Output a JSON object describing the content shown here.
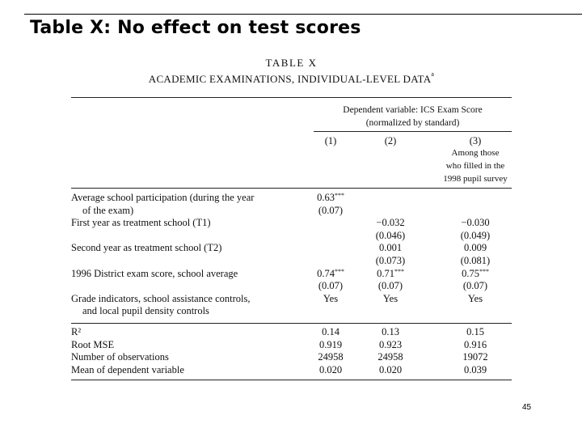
{
  "slide": {
    "title": "Table X: No effect on test scores",
    "page_number": "45"
  },
  "table": {
    "caption_line1": "TABLE X",
    "caption_line2": "ACADEMIC EXAMINATIONS, INDIVIDUAL-LEVEL DATA",
    "caption_mark": "a",
    "dep_var_line1": "Dependent variable: ICS Exam Score",
    "dep_var_line2": "(normalized by standard)",
    "columns": [
      {
        "number": "(1)",
        "sub": []
      },
      {
        "number": "(2)",
        "sub": []
      },
      {
        "number": "(3)",
        "sub": [
          "Among those",
          "who filled in the",
          "1998 pupil survey"
        ]
      }
    ],
    "rows": [
      {
        "label": "Average school participation (during the year",
        "c1": "0.63",
        "c1_stars": "***",
        "c2": "",
        "c3": ""
      },
      {
        "label": "of the exam)",
        "indent": true,
        "c1": "(0.07)",
        "c2": "",
        "c3": ""
      },
      {
        "label": "First year as treatment school (T1)",
        "c1": "",
        "c2": "−0.032",
        "c3": "−0.030"
      },
      {
        "label": "",
        "c1": "",
        "c2": "(0.046)",
        "c3": "(0.049)"
      },
      {
        "label": "Second year as treatment school (T2)",
        "c1": "",
        "c2": "0.001",
        "c3": "0.009"
      },
      {
        "label": "",
        "c1": "",
        "c2": "(0.073)",
        "c3": "(0.081)"
      },
      {
        "label": "1996 District exam score, school average",
        "c1": "0.74",
        "c1_stars": "***",
        "c2": "0.71",
        "c2_stars": "***",
        "c3": "0.75",
        "c3_stars": "***"
      },
      {
        "label": "",
        "c1": "(0.07)",
        "c2": "(0.07)",
        "c3": "(0.07)"
      },
      {
        "label": "Grade indicators, school assistance controls,",
        "c1": "Yes",
        "c2": "Yes",
        "c3": "Yes"
      },
      {
        "label": "and local pupil density controls",
        "indent": true,
        "c1": "",
        "c2": "",
        "c3": ""
      }
    ],
    "stats": [
      {
        "label": "R²",
        "c1": "0.14",
        "c2": "0.13",
        "c3": "0.15"
      },
      {
        "label": "Root MSE",
        "c1": "0.919",
        "c2": "0.923",
        "c3": "0.916"
      },
      {
        "label": "Number of observations",
        "c1": "24958",
        "c2": "24958",
        "c3": "19072"
      },
      {
        "label": "Mean of dependent variable",
        "c1": "0.020",
        "c2": "0.020",
        "c3": "0.039"
      }
    ]
  }
}
